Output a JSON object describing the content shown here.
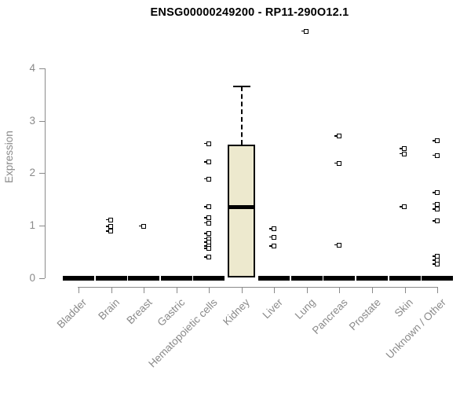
{
  "title": "ENSG00000249200 - RP11-290O12.1",
  "chart_data": {
    "type": "box",
    "title": "ENSG00000249200 - RP11-290O12.1",
    "xlabel": "",
    "ylabel": "Expression",
    "ylim": [
      0,
      4
    ],
    "yticks": [
      0,
      1,
      2,
      3,
      4
    ],
    "grid": false,
    "legend": "none",
    "categories": [
      "Bladder",
      "Brain",
      "Breast",
      "Gastric",
      "Hematopoietic cells",
      "Kidney",
      "Liver",
      "Lung",
      "Pancreas",
      "Prostate",
      "Skin",
      "Unknown / Other"
    ],
    "boxes": [
      {
        "category": "Bladder",
        "q1": 0,
        "median": 0,
        "q3": 0,
        "whisker_low": 0,
        "whisker_high": 0,
        "outliers": []
      },
      {
        "category": "Brain",
        "q1": 0,
        "median": 0,
        "q3": 0,
        "whisker_low": 0,
        "whisker_high": 0,
        "outliers": [
          1.1,
          0.97,
          0.88
        ]
      },
      {
        "category": "Breast",
        "q1": 0,
        "median": 0,
        "q3": 0,
        "whisker_low": 0,
        "whisker_high": 0,
        "outliers": [
          0.98
        ]
      },
      {
        "category": "Gastric",
        "q1": 0,
        "median": 0,
        "q3": 0,
        "whisker_low": 0,
        "whisker_high": 0,
        "outliers": []
      },
      {
        "category": "Hematopoietic cells",
        "q1": 0,
        "median": 0,
        "q3": 0,
        "whisker_low": 0,
        "whisker_high": 0,
        "outliers": [
          2.56,
          2.2,
          1.88,
          1.35,
          1.14,
          1.04,
          0.84,
          0.74,
          0.67,
          0.6,
          0.55,
          0.39
        ]
      },
      {
        "category": "Kidney",
        "q1": 0,
        "median": 1.35,
        "q3": 2.55,
        "whisker_low": 0,
        "whisker_high": 3.65,
        "outliers": []
      },
      {
        "category": "Liver",
        "q1": 0,
        "median": 0,
        "q3": 0,
        "whisker_low": 0,
        "whisker_high": 0,
        "outliers": [
          0.93,
          0.77,
          0.6
        ]
      },
      {
        "category": "Lung",
        "q1": 0,
        "median": 0,
        "q3": 0,
        "whisker_low": 0,
        "whisker_high": 0,
        "outliers": [
          4.7
        ]
      },
      {
        "category": "Pancreas",
        "q1": 0,
        "median": 0,
        "q3": 0,
        "whisker_low": 0,
        "whisker_high": 0,
        "outliers": [
          2.7,
          2.18,
          0.62
        ]
      },
      {
        "category": "Prostate",
        "q1": 0,
        "median": 0,
        "q3": 0,
        "whisker_low": 0,
        "whisker_high": 0,
        "outliers": []
      },
      {
        "category": "Skin",
        "q1": 0,
        "median": 0,
        "q3": 0,
        "whisker_low": 0,
        "whisker_high": 0,
        "outliers": [
          2.46,
          2.36,
          1.35
        ]
      },
      {
        "category": "Unknown / Other",
        "q1": 0,
        "median": 0,
        "q3": 0,
        "whisker_low": 0,
        "whisker_high": 0,
        "outliers": [
          2.61,
          2.33,
          1.62,
          1.4,
          1.3,
          1.08,
          0.4,
          0.33,
          0.25
        ]
      }
    ],
    "colors": {
      "box_fill": "#ede9ce",
      "box_stroke": "#000000",
      "axis": "#8a8a8a",
      "tick_label": "#8a8a8a",
      "title": "#000000",
      "background": "#ffffff"
    }
  }
}
